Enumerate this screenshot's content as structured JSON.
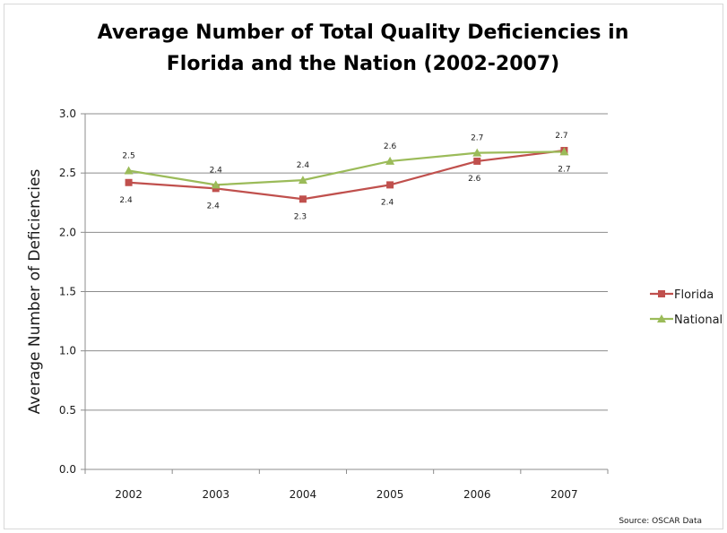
{
  "chart_data": {
    "type": "line",
    "title": [
      "Average Number of Total Quality Deficiencies in",
      "Florida and the Nation (2002-2007)"
    ],
    "xlabel": "",
    "ylabel": "Average Number of Deficiencies",
    "categories": [
      "2002",
      "2003",
      "2004",
      "2005",
      "2006",
      "2007"
    ],
    "ylim": [
      0.0,
      3.0
    ],
    "yticks": [
      "0.0",
      "0.5",
      "1.0",
      "1.5",
      "2.0",
      "2.5",
      "3.0"
    ],
    "grid": true,
    "legend_position": "right",
    "series": [
      {
        "name": "Florida",
        "color": "#c0504d",
        "marker": "square",
        "values": [
          2.42,
          2.37,
          2.28,
          2.4,
          2.6,
          2.69
        ],
        "labels": [
          "2.4",
          "2.4",
          "2.3",
          "2.4",
          "2.6",
          "2.7"
        ],
        "label_position": [
          "below",
          "below",
          "below",
          "below",
          "below",
          "above"
        ]
      },
      {
        "name": "National",
        "color": "#9bbb59",
        "marker": "triangle",
        "values": [
          2.52,
          2.4,
          2.44,
          2.6,
          2.67,
          2.68
        ],
        "labels": [
          "2.5",
          "2.4",
          "2.4",
          "2.6",
          "2.7",
          "2.7"
        ],
        "label_position": [
          "above",
          "above",
          "above",
          "above",
          "above",
          "below"
        ]
      }
    ],
    "source": "Source: OSCAR Data"
  }
}
